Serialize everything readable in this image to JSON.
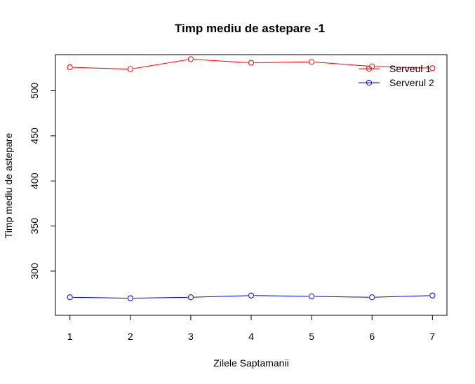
{
  "chart_data": {
    "type": "line",
    "title": "Timp mediu de astepare  -1",
    "xlabel": "Zilele Saptamanii",
    "ylabel": "Timp mediu de astepare",
    "x": [
      1,
      2,
      3,
      4,
      5,
      6,
      7
    ],
    "x_ticks": [
      "1",
      "2",
      "3",
      "4",
      "5",
      "6",
      "7"
    ],
    "y_ticks": [
      "300",
      "350",
      "400",
      "450",
      "500"
    ],
    "xlim": [
      0.76,
      7.24
    ],
    "ylim": [
      251,
      540
    ],
    "grid": false,
    "legend_position": "top-right",
    "series": [
      {
        "name": "Serveul 1",
        "color": "#ff0000",
        "marker": "open-circle",
        "values": [
          526,
          524,
          535,
          531,
          532,
          527,
          525
        ]
      },
      {
        "name": "Serverul 2",
        "color": "#0000ff",
        "marker": "open-circle",
        "values": [
          271,
          270,
          271,
          273,
          272,
          271,
          273
        ]
      }
    ]
  }
}
